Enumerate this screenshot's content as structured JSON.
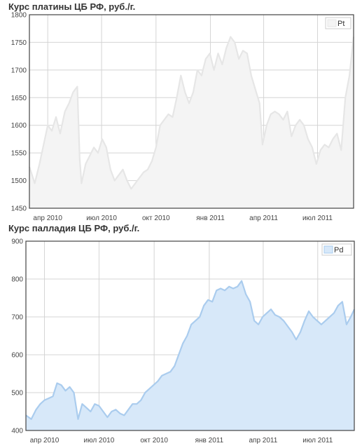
{
  "chart_data": [
    {
      "type": "area",
      "title": "Курс платины ЦБ РФ, руб./г.",
      "series": [
        {
          "name": "Pt",
          "color": "#e6e6e6",
          "fill": "#f4f4f4"
        }
      ],
      "ylim": [
        1450,
        1800
      ],
      "yticks": [
        1450,
        1500,
        1550,
        1600,
        1650,
        1700,
        1750,
        1800
      ],
      "xlim": [
        "2010-03-01",
        "2011-08-31"
      ],
      "xticks": [
        {
          "date": "2010-04-01",
          "label": "апр 2010"
        },
        {
          "date": "2010-07-01",
          "label": "июл 2010"
        },
        {
          "date": "2010-10-01",
          "label": "окт 2010"
        },
        {
          "date": "2011-01-01",
          "label": "янв 2011"
        },
        {
          "date": "2011-04-01",
          "label": "апр 2011"
        },
        {
          "date": "2011-07-01",
          "label": "июл 2011"
        }
      ],
      "grid": true,
      "legend_position": "top-right",
      "points": [
        [
          "2010-03-01",
          1525
        ],
        [
          "2010-03-10",
          1495
        ],
        [
          "2010-03-18",
          1530
        ],
        [
          "2010-03-25",
          1565
        ],
        [
          "2010-04-01",
          1600
        ],
        [
          "2010-04-08",
          1590
        ],
        [
          "2010-04-15",
          1615
        ],
        [
          "2010-04-22",
          1585
        ],
        [
          "2010-04-30",
          1625
        ],
        [
          "2010-05-07",
          1640
        ],
        [
          "2010-05-14",
          1660
        ],
        [
          "2010-05-21",
          1670
        ],
        [
          "2010-05-25",
          1540
        ],
        [
          "2010-05-28",
          1495
        ],
        [
          "2010-06-04",
          1530
        ],
        [
          "2010-06-11",
          1545
        ],
        [
          "2010-06-18",
          1560
        ],
        [
          "2010-06-25",
          1550
        ],
        [
          "2010-07-02",
          1575
        ],
        [
          "2010-07-09",
          1560
        ],
        [
          "2010-07-16",
          1520
        ],
        [
          "2010-07-23",
          1500
        ],
        [
          "2010-07-30",
          1510
        ],
        [
          "2010-08-06",
          1520
        ],
        [
          "2010-08-13",
          1500
        ],
        [
          "2010-08-20",
          1485
        ],
        [
          "2010-08-27",
          1495
        ],
        [
          "2010-09-03",
          1505
        ],
        [
          "2010-09-10",
          1515
        ],
        [
          "2010-09-17",
          1520
        ],
        [
          "2010-09-24",
          1535
        ],
        [
          "2010-10-01",
          1560
        ],
        [
          "2010-10-08",
          1600
        ],
        [
          "2010-10-15",
          1610
        ],
        [
          "2010-10-22",
          1620
        ],
        [
          "2010-10-29",
          1615
        ],
        [
          "2010-11-05",
          1650
        ],
        [
          "2010-11-12",
          1690
        ],
        [
          "2010-11-19",
          1660
        ],
        [
          "2010-11-26",
          1640
        ],
        [
          "2010-12-03",
          1660
        ],
        [
          "2010-12-10",
          1700
        ],
        [
          "2010-12-17",
          1690
        ],
        [
          "2010-12-24",
          1720
        ],
        [
          "2010-12-31",
          1730
        ],
        [
          "2011-01-07",
          1700
        ],
        [
          "2011-01-14",
          1730
        ],
        [
          "2011-01-21",
          1710
        ],
        [
          "2011-01-28",
          1740
        ],
        [
          "2011-02-04",
          1760
        ],
        [
          "2011-02-11",
          1750
        ],
        [
          "2011-02-18",
          1720
        ],
        [
          "2011-02-25",
          1735
        ],
        [
          "2011-03-04",
          1730
        ],
        [
          "2011-03-11",
          1690
        ],
        [
          "2011-03-18",
          1665
        ],
        [
          "2011-03-25",
          1640
        ],
        [
          "2011-03-30",
          1565
        ],
        [
          "2011-04-06",
          1600
        ],
        [
          "2011-04-13",
          1620
        ],
        [
          "2011-04-20",
          1625
        ],
        [
          "2011-04-27",
          1620
        ],
        [
          "2011-05-04",
          1610
        ],
        [
          "2011-05-11",
          1625
        ],
        [
          "2011-05-18",
          1580
        ],
        [
          "2011-05-25",
          1600
        ],
        [
          "2011-06-01",
          1610
        ],
        [
          "2011-06-08",
          1600
        ],
        [
          "2011-06-15",
          1575
        ],
        [
          "2011-06-22",
          1560
        ],
        [
          "2011-06-29",
          1530
        ],
        [
          "2011-07-06",
          1555
        ],
        [
          "2011-07-13",
          1565
        ],
        [
          "2011-07-20",
          1560
        ],
        [
          "2011-07-27",
          1575
        ],
        [
          "2011-08-03",
          1585
        ],
        [
          "2011-08-10",
          1555
        ],
        [
          "2011-08-17",
          1650
        ],
        [
          "2011-08-24",
          1690
        ],
        [
          "2011-08-31",
          1760
        ]
      ]
    },
    {
      "type": "area",
      "title": "Курс палладия ЦБ РФ, руб./г.",
      "series": [
        {
          "name": "Pd",
          "color": "#aaccee",
          "fill": "#d7e8f9"
        }
      ],
      "ylim": [
        400,
        900
      ],
      "yticks": [
        400,
        500,
        600,
        700,
        800,
        900
      ],
      "xlim": [
        "2010-03-01",
        "2011-08-31"
      ],
      "xticks": [
        {
          "date": "2010-04-01",
          "label": "апр 2010"
        },
        {
          "date": "2010-07-01",
          "label": "июл 2010"
        },
        {
          "date": "2010-10-01",
          "label": "окт 2010"
        },
        {
          "date": "2011-01-01",
          "label": "янв 2011"
        },
        {
          "date": "2011-04-01",
          "label": "апр 2011"
        },
        {
          "date": "2011-07-01",
          "label": "июл 2011"
        }
      ],
      "grid": true,
      "legend_position": "top-right",
      "points": [
        [
          "2010-03-01",
          440
        ],
        [
          "2010-03-10",
          430
        ],
        [
          "2010-03-18",
          455
        ],
        [
          "2010-03-25",
          470
        ],
        [
          "2010-04-01",
          480
        ],
        [
          "2010-04-08",
          485
        ],
        [
          "2010-04-15",
          490
        ],
        [
          "2010-04-22",
          525
        ],
        [
          "2010-04-29",
          520
        ],
        [
          "2010-05-06",
          505
        ],
        [
          "2010-05-13",
          515
        ],
        [
          "2010-05-20",
          500
        ],
        [
          "2010-05-27",
          430
        ],
        [
          "2010-06-03",
          470
        ],
        [
          "2010-06-10",
          460
        ],
        [
          "2010-06-17",
          450
        ],
        [
          "2010-06-24",
          470
        ],
        [
          "2010-07-01",
          465
        ],
        [
          "2010-07-08",
          450
        ],
        [
          "2010-07-15",
          435
        ],
        [
          "2010-07-22",
          450
        ],
        [
          "2010-07-29",
          455
        ],
        [
          "2010-08-05",
          445
        ],
        [
          "2010-08-12",
          440
        ],
        [
          "2010-08-19",
          455
        ],
        [
          "2010-08-26",
          470
        ],
        [
          "2010-09-02",
          470
        ],
        [
          "2010-09-09",
          480
        ],
        [
          "2010-09-16",
          500
        ],
        [
          "2010-09-23",
          510
        ],
        [
          "2010-09-30",
          520
        ],
        [
          "2010-10-07",
          530
        ],
        [
          "2010-10-14",
          545
        ],
        [
          "2010-10-21",
          550
        ],
        [
          "2010-10-28",
          555
        ],
        [
          "2010-11-04",
          570
        ],
        [
          "2010-11-11",
          600
        ],
        [
          "2010-11-18",
          630
        ],
        [
          "2010-11-25",
          650
        ],
        [
          "2010-12-02",
          680
        ],
        [
          "2010-12-09",
          690
        ],
        [
          "2010-12-16",
          700
        ],
        [
          "2010-12-23",
          730
        ],
        [
          "2010-12-30",
          745
        ],
        [
          "2011-01-06",
          740
        ],
        [
          "2011-01-13",
          770
        ],
        [
          "2011-01-20",
          775
        ],
        [
          "2011-01-27",
          770
        ],
        [
          "2011-02-03",
          780
        ],
        [
          "2011-02-10",
          775
        ],
        [
          "2011-02-17",
          780
        ],
        [
          "2011-02-24",
          795
        ],
        [
          "2011-03-03",
          760
        ],
        [
          "2011-03-10",
          740
        ],
        [
          "2011-03-17",
          690
        ],
        [
          "2011-03-24",
          680
        ],
        [
          "2011-03-31",
          700
        ],
        [
          "2011-04-07",
          710
        ],
        [
          "2011-04-14",
          720
        ],
        [
          "2011-04-21",
          705
        ],
        [
          "2011-04-28",
          700
        ],
        [
          "2011-05-05",
          690
        ],
        [
          "2011-05-12",
          675
        ],
        [
          "2011-05-19",
          660
        ],
        [
          "2011-05-26",
          640
        ],
        [
          "2011-06-02",
          660
        ],
        [
          "2011-06-09",
          690
        ],
        [
          "2011-06-16",
          715
        ],
        [
          "2011-06-23",
          700
        ],
        [
          "2011-06-30",
          690
        ],
        [
          "2011-07-07",
          680
        ],
        [
          "2011-07-14",
          690
        ],
        [
          "2011-07-21",
          700
        ],
        [
          "2011-07-28",
          710
        ],
        [
          "2011-08-04",
          730
        ],
        [
          "2011-08-11",
          740
        ],
        [
          "2011-08-18",
          680
        ],
        [
          "2011-08-25",
          700
        ],
        [
          "2011-08-31",
          720
        ]
      ]
    }
  ]
}
